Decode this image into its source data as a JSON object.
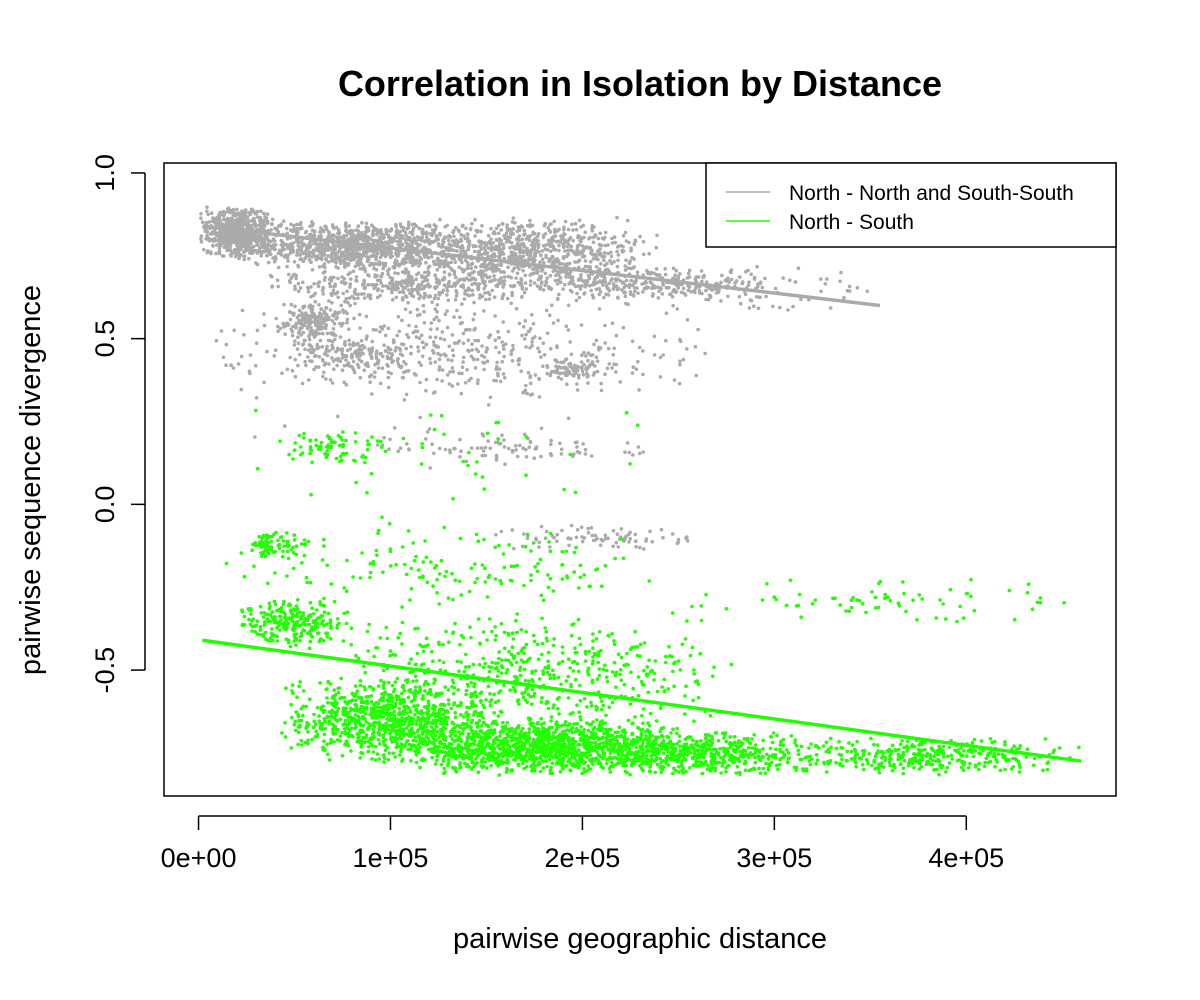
{
  "chart_data": {
    "type": "scatter",
    "title": "Correlation in Isolation by Distance",
    "xlabel": "pairwise geographic distance",
    "ylabel": "pairwise sequence divergence",
    "xlim": [
      -18000,
      478000
    ],
    "ylim": [
      -0.88,
      1.03
    ],
    "x_ticks": [
      0,
      100000,
      200000,
      300000,
      400000
    ],
    "x_tick_labels": [
      "0e+00",
      "1e+05",
      "2e+05",
      "3e+05",
      "4e+05"
    ],
    "y_ticks": [
      -0.5,
      0.0,
      0.5,
      1.0
    ],
    "y_tick_labels": [
      "-0.5",
      "0.0",
      "0.5",
      "1.0"
    ],
    "grid": false,
    "legend_position": "top-right",
    "series": [
      {
        "name": "North - North and South-South",
        "color": "#aaaaaa",
        "fit_line": {
          "x": [
            2000,
            355000
          ],
          "y": [
            0.84,
            0.6
          ]
        },
        "clusters": [
          {
            "x": [
              0,
              40000
            ],
            "y": [
              0.74,
              0.9
            ],
            "n": 650
          },
          {
            "x": [
              20000,
              140000
            ],
            "y": [
              0.7,
              0.86
            ],
            "n": 900
          },
          {
            "x": [
              100000,
              240000
            ],
            "y": [
              0.66,
              0.87
            ],
            "n": 800
          },
          {
            "x": [
              30000,
              200000
            ],
            "y": [
              0.6,
              0.72
            ],
            "n": 400
          },
          {
            "x": [
              150000,
              300000
            ],
            "y": [
              0.62,
              0.72
            ],
            "n": 250
          },
          {
            "x": [
              200000,
              355000
            ],
            "y": [
              0.58,
              0.72
            ],
            "n": 120
          },
          {
            "x": [
              40000,
              80000
            ],
            "y": [
              0.48,
              0.62
            ],
            "n": 200
          },
          {
            "x": [
              50000,
              110000
            ],
            "y": [
              0.4,
              0.5
            ],
            "n": 120
          },
          {
            "x": [
              0,
              270000
            ],
            "y": [
              0.3,
              0.62
            ],
            "n": 450
          },
          {
            "x": [
              180000,
              210000
            ],
            "y": [
              0.38,
              0.44
            ],
            "n": 80
          },
          {
            "x": [
              80000,
              250000
            ],
            "y": [
              0.12,
              0.22
            ],
            "n": 90
          },
          {
            "x": [
              150000,
              270000
            ],
            "y": [
              -0.14,
              -0.06
            ],
            "n": 80
          },
          {
            "x": [
              0,
              250000
            ],
            "y": [
              0.0,
              0.9
            ],
            "n": 60
          }
        ]
      },
      {
        "name": "North - South",
        "color": "#22ff00",
        "fit_line": {
          "x": [
            2000,
            460000
          ],
          "y": [
            -0.41,
            -0.775
          ]
        },
        "clusters": [
          {
            "x": [
              100000,
              260000
            ],
            "y": [
              -0.82,
              -0.64
            ],
            "n": 1300
          },
          {
            "x": [
              40000,
              160000
            ],
            "y": [
              -0.78,
              -0.52
            ],
            "n": 900
          },
          {
            "x": [
              200000,
              330000
            ],
            "y": [
              -0.82,
              -0.68
            ],
            "n": 500
          },
          {
            "x": [
              300000,
              460000
            ],
            "y": [
              -0.82,
              -0.7
            ],
            "n": 350
          },
          {
            "x": [
              70000,
              280000
            ],
            "y": [
              -0.68,
              -0.32
            ],
            "n": 500
          },
          {
            "x": [
              20000,
              80000
            ],
            "y": [
              -0.44,
              -0.28
            ],
            "n": 250
          },
          {
            "x": [
              20000,
              60000
            ],
            "y": [
              -0.16,
              -0.08
            ],
            "n": 80
          },
          {
            "x": [
              0,
              260000
            ],
            "y": [
              -0.32,
              -0.05
            ],
            "n": 150
          },
          {
            "x": [
              250000,
              460000
            ],
            "y": [
              -0.36,
              -0.22
            ],
            "n": 70
          },
          {
            "x": [
              40000,
              100000
            ],
            "y": [
              0.12,
              0.22
            ],
            "n": 70
          },
          {
            "x": [
              0,
              260000
            ],
            "y": [
              -0.05,
              0.33
            ],
            "n": 40
          }
        ]
      }
    ]
  }
}
